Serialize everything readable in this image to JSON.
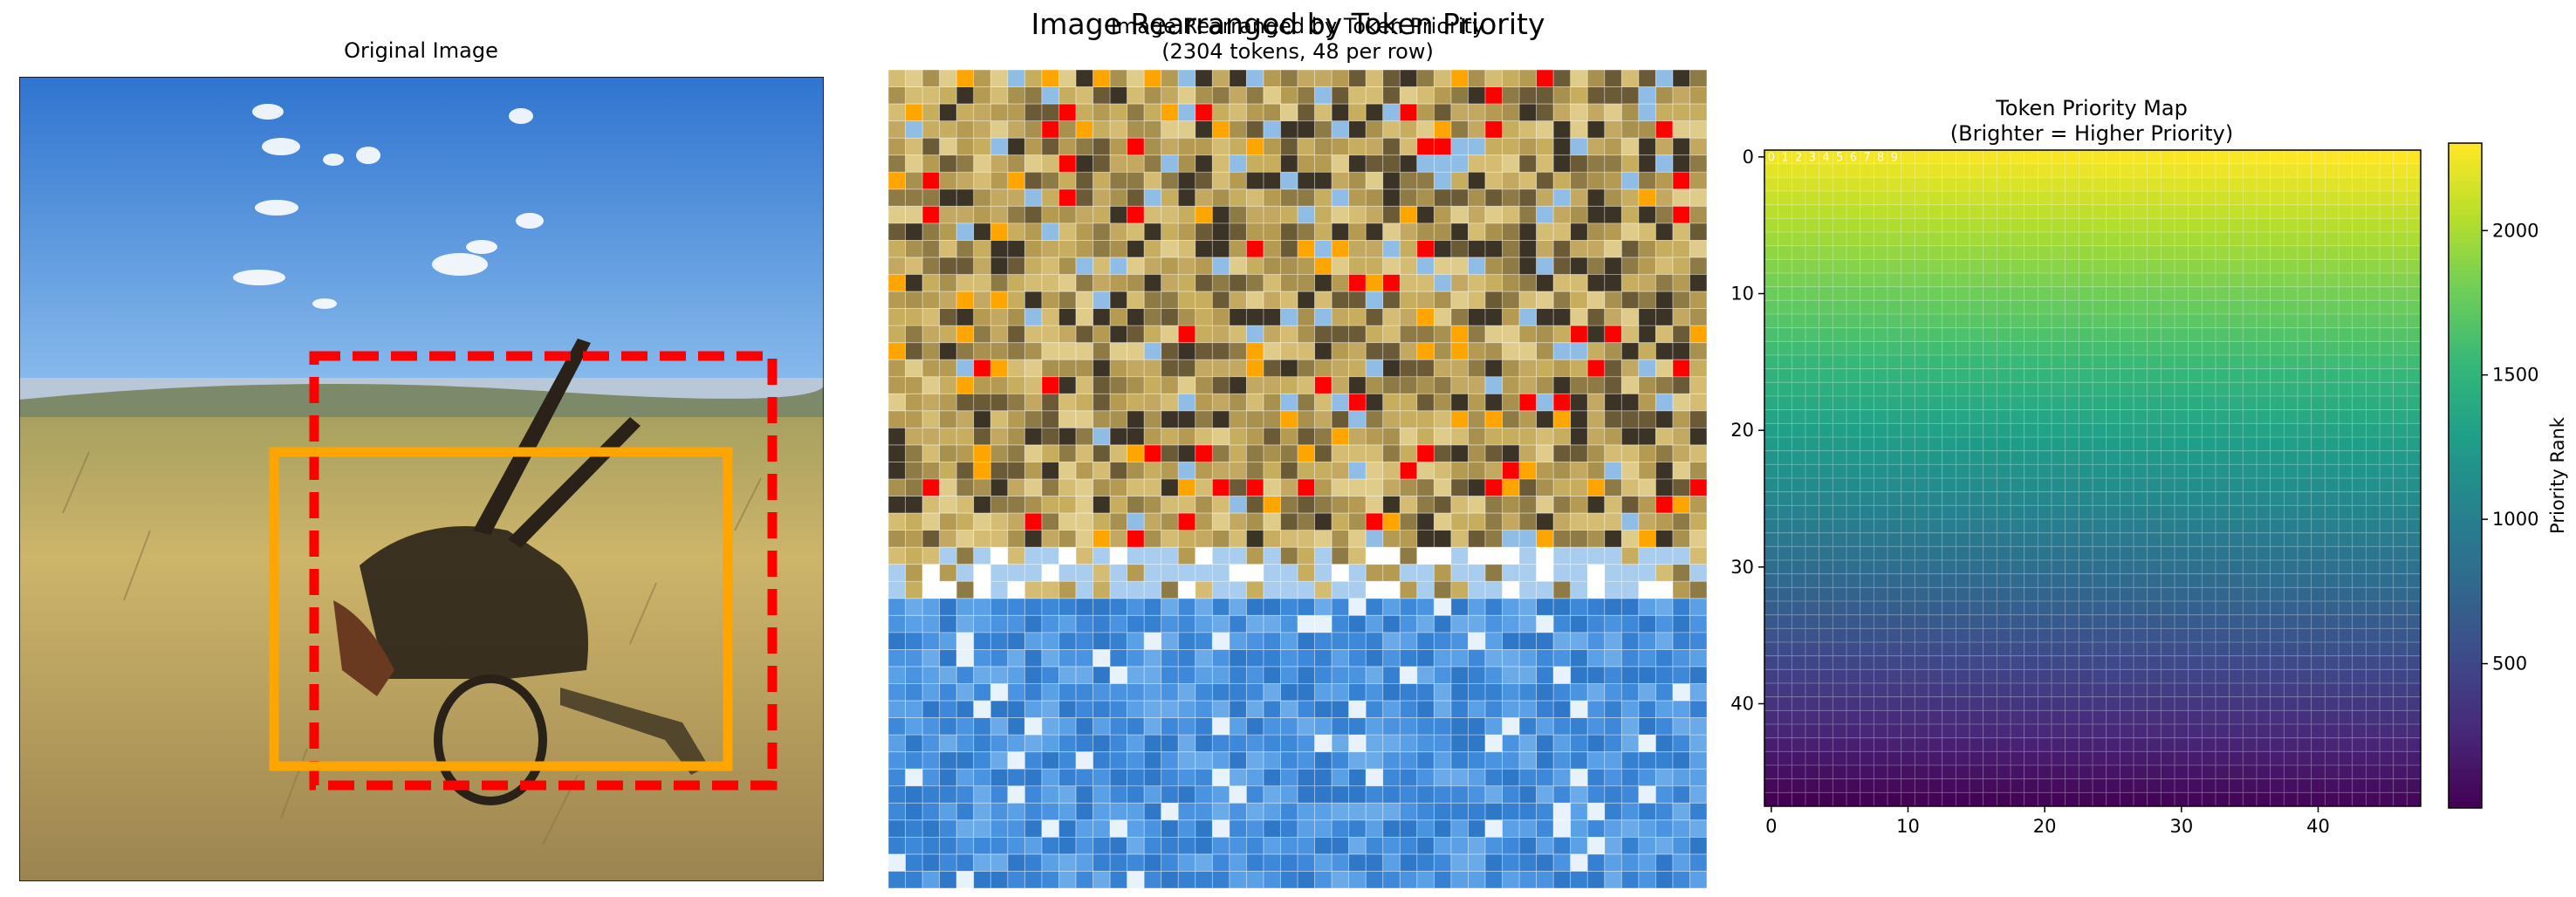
{
  "suptitle": "Image Rearranged by Token Priority",
  "panels": {
    "original": {
      "title": "Original Image"
    },
    "rearranged": {
      "title": "Image Rearranged by Token Priority\n(2304 tokens, 48 per row)"
    },
    "priority_map": {
      "title": "Token Priority Map\n(Brighter = Higher Priority)"
    }
  },
  "colors": {
    "box_dashed": "#ff0000",
    "box_solid": "#ffa500",
    "sky": "#3f8fe0",
    "field": "#c9b064"
  },
  "chart_data": {
    "type": "heatmap",
    "title": "Token Priority Map\n(Brighter = Higher Priority)",
    "grid": [
      48,
      48
    ],
    "colormap": "viridis",
    "value_range": [
      0,
      2303
    ],
    "x_ticks": [
      0,
      10,
      20,
      30,
      40
    ],
    "y_ticks": [
      0,
      10,
      20,
      30,
      40
    ],
    "colorbar": {
      "label": "Priority Rank",
      "ticks": [
        500,
        1000,
        1500,
        2000
      ]
    },
    "row0_annotations": [
      "0",
      "1",
      "2",
      "3",
      "4",
      "5",
      "6",
      "7",
      "8",
      "9"
    ]
  }
}
